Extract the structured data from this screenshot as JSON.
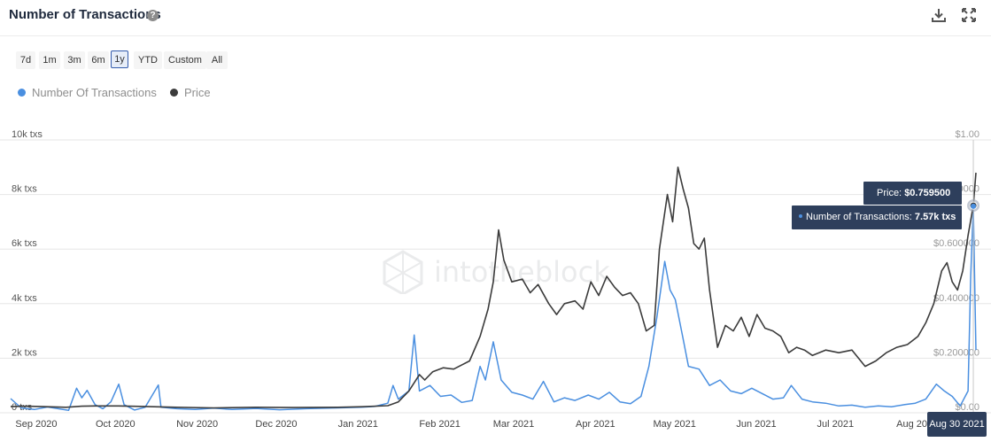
{
  "header": {
    "title": "Number of Transactions",
    "help_icon": "question-circle-icon",
    "download_icon": "download-icon",
    "expand_icon": "expand-icon"
  },
  "range_buttons": [
    {
      "label": "7d",
      "active": false
    },
    {
      "label": "1m",
      "active": false
    },
    {
      "label": "3m",
      "active": false
    },
    {
      "label": "6m",
      "active": false
    },
    {
      "label": "1y",
      "active": true
    },
    {
      "label": "YTD",
      "active": false
    },
    {
      "label": "Custom",
      "active": false
    },
    {
      "label": "All",
      "active": false
    }
  ],
  "colors": {
    "transactions": "#4a8fe0",
    "price": "#3b3b3b",
    "tooltip_bg": "#2e3f5c",
    "active_button_border": "#335cad"
  },
  "watermark": "intotheblock",
  "tooltip": {
    "price_label": "Price: ",
    "price_value": "$0.759500",
    "tx_label": "Number of Transactions: ",
    "tx_value": "7.57k txs",
    "date": "Aug 30 2021"
  },
  "chart_data": {
    "type": "line",
    "legend_position": "top-left",
    "grid": true,
    "x_axis": {
      "start": "2020-08-30",
      "end": "2021-09-01",
      "ticks": [
        {
          "date": "2020-09-01",
          "label": "Sep 2020"
        },
        {
          "date": "2020-10-01",
          "label": "Oct 2020"
        },
        {
          "date": "2020-11-01",
          "label": "Nov 2020"
        },
        {
          "date": "2020-12-01",
          "label": "Dec 2020"
        },
        {
          "date": "2021-01-01",
          "label": "Jan 2021"
        },
        {
          "date": "2021-02-01",
          "label": "Feb 2021"
        },
        {
          "date": "2021-03-01",
          "label": "Mar 2021"
        },
        {
          "date": "2021-04-01",
          "label": "Apr 2021"
        },
        {
          "date": "2021-05-01",
          "label": "May 2021"
        },
        {
          "date": "2021-06-01",
          "label": "Jun 2021"
        },
        {
          "date": "2021-07-01",
          "label": "Jul 2021"
        },
        {
          "date": "2021-08-01",
          "label": "Aug 2021"
        }
      ]
    },
    "y_left": {
      "range": [
        0,
        10000
      ],
      "ticks": [
        {
          "value": 0,
          "label": "0 txs"
        },
        {
          "value": 2000,
          "label": "2k txs"
        },
        {
          "value": 4000,
          "label": "4k txs"
        },
        {
          "value": 6000,
          "label": "6k txs"
        },
        {
          "value": 8000,
          "label": "8k txs"
        },
        {
          "value": 10000,
          "label": "10k txs"
        }
      ]
    },
    "y_right": {
      "range": [
        0,
        1
      ],
      "ticks": [
        {
          "value": 0,
          "label": "$0.00"
        },
        {
          "value": 0.2,
          "label": "$0.200000"
        },
        {
          "value": 0.4,
          "label": "$0.400000"
        },
        {
          "value": 0.6,
          "label": "$0.600000"
        },
        {
          "value": 0.8,
          "label": "$0.800000"
        },
        {
          "value": 1.0,
          "label": "$1.00"
        }
      ]
    },
    "series": [
      {
        "name": "Number Of Transactions",
        "axis": "left",
        "points": [
          [
            "2020-08-30",
            520
          ],
          [
            "2020-09-03",
            180
          ],
          [
            "2020-09-08",
            120
          ],
          [
            "2020-09-13",
            210
          ],
          [
            "2020-09-17",
            150
          ],
          [
            "2020-09-21",
            90
          ],
          [
            "2020-09-24",
            900
          ],
          [
            "2020-09-26",
            550
          ],
          [
            "2020-09-28",
            820
          ],
          [
            "2020-10-01",
            300
          ],
          [
            "2020-10-04",
            150
          ],
          [
            "2020-10-07",
            400
          ],
          [
            "2020-10-10",
            1050
          ],
          [
            "2020-10-12",
            300
          ],
          [
            "2020-10-16",
            100
          ],
          [
            "2020-10-20",
            200
          ],
          [
            "2020-10-25",
            1020
          ],
          [
            "2020-10-26",
            200
          ],
          [
            "2020-11-01",
            150
          ],
          [
            "2020-11-08",
            120
          ],
          [
            "2020-11-15",
            170
          ],
          [
            "2020-11-22",
            120
          ],
          [
            "2020-12-01",
            160
          ],
          [
            "2020-12-10",
            110
          ],
          [
            "2020-12-20",
            150
          ],
          [
            "2021-01-01",
            180
          ],
          [
            "2021-01-10",
            200
          ],
          [
            "2021-01-15",
            230
          ],
          [
            "2021-01-20",
            350
          ],
          [
            "2021-01-22",
            1000
          ],
          [
            "2021-01-24",
            500
          ],
          [
            "2021-01-28",
            800
          ],
          [
            "2021-01-30",
            2850
          ],
          [
            "2021-02-01",
            800
          ],
          [
            "2021-02-05",
            1000
          ],
          [
            "2021-02-09",
            600
          ],
          [
            "2021-02-13",
            650
          ],
          [
            "2021-02-17",
            380
          ],
          [
            "2021-02-21",
            450
          ],
          [
            "2021-02-24",
            1700
          ],
          [
            "2021-02-26",
            1200
          ],
          [
            "2021-03-01",
            2600
          ],
          [
            "2021-03-04",
            1200
          ],
          [
            "2021-03-08",
            750
          ],
          [
            "2021-03-12",
            650
          ],
          [
            "2021-03-16",
            500
          ],
          [
            "2021-03-20",
            1150
          ],
          [
            "2021-03-24",
            400
          ],
          [
            "2021-03-28",
            550
          ],
          [
            "2021-04-01",
            450
          ],
          [
            "2021-04-06",
            650
          ],
          [
            "2021-04-10",
            500
          ],
          [
            "2021-04-14",
            750
          ],
          [
            "2021-04-18",
            400
          ],
          [
            "2021-04-22",
            330
          ],
          [
            "2021-04-26",
            600
          ],
          [
            "2021-04-29",
            1700
          ],
          [
            "2021-05-02",
            3500
          ],
          [
            "2021-05-05",
            5550
          ],
          [
            "2021-05-07",
            4500
          ],
          [
            "2021-05-09",
            4150
          ],
          [
            "2021-05-12",
            2700
          ],
          [
            "2021-05-14",
            1700
          ],
          [
            "2021-05-18",
            1600
          ],
          [
            "2021-05-22",
            1000
          ],
          [
            "2021-05-26",
            1200
          ],
          [
            "2021-05-30",
            800
          ],
          [
            "2021-06-03",
            700
          ],
          [
            "2021-06-07",
            900
          ],
          [
            "2021-06-11",
            700
          ],
          [
            "2021-06-15",
            500
          ],
          [
            "2021-06-19",
            550
          ],
          [
            "2021-06-22",
            1000
          ],
          [
            "2021-06-26",
            500
          ],
          [
            "2021-06-30",
            400
          ],
          [
            "2021-07-05",
            350
          ],
          [
            "2021-07-10",
            250
          ],
          [
            "2021-07-15",
            280
          ],
          [
            "2021-07-20",
            200
          ],
          [
            "2021-07-25",
            250
          ],
          [
            "2021-07-30",
            220
          ],
          [
            "2021-08-04",
            300
          ],
          [
            "2021-08-08",
            350
          ],
          [
            "2021-08-12",
            500
          ],
          [
            "2021-08-16",
            1050
          ],
          [
            "2021-08-19",
            800
          ],
          [
            "2021-08-22",
            600
          ],
          [
            "2021-08-25",
            250
          ],
          [
            "2021-08-28",
            800
          ],
          [
            "2021-08-29",
            5000
          ],
          [
            "2021-08-30",
            7570
          ],
          [
            "2021-08-31",
            2300
          ]
        ]
      },
      {
        "name": "Price",
        "axis": "right",
        "points": [
          [
            "2020-08-30",
            0.023
          ],
          [
            "2020-09-05",
            0.024
          ],
          [
            "2020-09-10",
            0.023
          ],
          [
            "2020-09-20",
            0.02
          ],
          [
            "2020-09-26",
            0.024
          ],
          [
            "2020-10-01",
            0.025
          ],
          [
            "2020-10-10",
            0.025
          ],
          [
            "2020-10-20",
            0.023
          ],
          [
            "2020-11-01",
            0.02
          ],
          [
            "2020-11-15",
            0.018
          ],
          [
            "2020-12-01",
            0.02
          ],
          [
            "2020-12-15",
            0.019
          ],
          [
            "2021-01-01",
            0.02
          ],
          [
            "2021-01-10",
            0.022
          ],
          [
            "2021-01-20",
            0.026
          ],
          [
            "2021-01-24",
            0.04
          ],
          [
            "2021-01-28",
            0.08
          ],
          [
            "2021-02-01",
            0.14
          ],
          [
            "2021-02-03",
            0.12
          ],
          [
            "2021-02-06",
            0.15
          ],
          [
            "2021-02-10",
            0.165
          ],
          [
            "2021-02-14",
            0.16
          ],
          [
            "2021-02-17",
            0.175
          ],
          [
            "2021-02-20",
            0.19
          ],
          [
            "2021-02-24",
            0.28
          ],
          [
            "2021-02-27",
            0.38
          ],
          [
            "2021-03-01",
            0.48
          ],
          [
            "2021-03-03",
            0.67
          ],
          [
            "2021-03-05",
            0.56
          ],
          [
            "2021-03-08",
            0.48
          ],
          [
            "2021-03-12",
            0.49
          ],
          [
            "2021-03-15",
            0.44
          ],
          [
            "2021-03-18",
            0.47
          ],
          [
            "2021-03-22",
            0.4
          ],
          [
            "2021-03-25",
            0.36
          ],
          [
            "2021-03-28",
            0.4
          ],
          [
            "2021-04-01",
            0.41
          ],
          [
            "2021-04-04",
            0.38
          ],
          [
            "2021-04-07",
            0.48
          ],
          [
            "2021-04-10",
            0.43
          ],
          [
            "2021-04-13",
            0.5
          ],
          [
            "2021-04-16",
            0.46
          ],
          [
            "2021-04-19",
            0.43
          ],
          [
            "2021-04-22",
            0.44
          ],
          [
            "2021-04-25",
            0.4
          ],
          [
            "2021-04-28",
            0.3
          ],
          [
            "2021-05-01",
            0.32
          ],
          [
            "2021-05-03",
            0.6
          ],
          [
            "2021-05-06",
            0.8
          ],
          [
            "2021-05-08",
            0.7
          ],
          [
            "2021-05-10",
            0.9
          ],
          [
            "2021-05-12",
            0.82
          ],
          [
            "2021-05-14",
            0.75
          ],
          [
            "2021-05-16",
            0.62
          ],
          [
            "2021-05-18",
            0.6
          ],
          [
            "2021-05-20",
            0.64
          ],
          [
            "2021-05-22",
            0.45
          ],
          [
            "2021-05-25",
            0.24
          ],
          [
            "2021-05-28",
            0.32
          ],
          [
            "2021-05-31",
            0.3
          ],
          [
            "2021-06-03",
            0.35
          ],
          [
            "2021-06-06",
            0.28
          ],
          [
            "2021-06-09",
            0.36
          ],
          [
            "2021-06-12",
            0.31
          ],
          [
            "2021-06-15",
            0.3
          ],
          [
            "2021-06-18",
            0.28
          ],
          [
            "2021-06-21",
            0.22
          ],
          [
            "2021-06-24",
            0.24
          ],
          [
            "2021-06-27",
            0.23
          ],
          [
            "2021-06-30",
            0.21
          ],
          [
            "2021-07-05",
            0.23
          ],
          [
            "2021-07-10",
            0.22
          ],
          [
            "2021-07-15",
            0.23
          ],
          [
            "2021-07-20",
            0.17
          ],
          [
            "2021-07-24",
            0.19
          ],
          [
            "2021-07-28",
            0.22
          ],
          [
            "2021-08-01",
            0.24
          ],
          [
            "2021-08-05",
            0.25
          ],
          [
            "2021-08-09",
            0.28
          ],
          [
            "2021-08-12",
            0.33
          ],
          [
            "2021-08-15",
            0.4
          ],
          [
            "2021-08-18",
            0.52
          ],
          [
            "2021-08-20",
            0.55
          ],
          [
            "2021-08-22",
            0.48
          ],
          [
            "2021-08-24",
            0.45
          ],
          [
            "2021-08-26",
            0.52
          ],
          [
            "2021-08-28",
            0.65
          ],
          [
            "2021-08-30",
            0.7595
          ],
          [
            "2021-08-31",
            0.88
          ]
        ]
      }
    ]
  }
}
